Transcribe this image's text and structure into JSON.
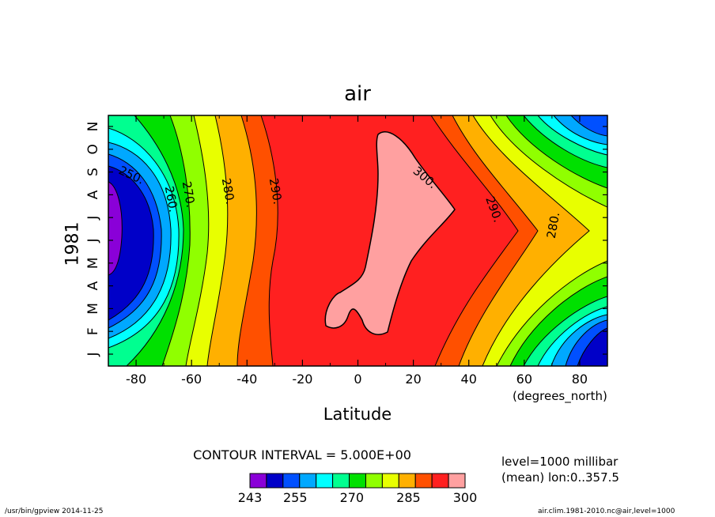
{
  "chart_data": {
    "type": "heatmap",
    "title": "air",
    "xlabel": "Latitude",
    "xunit": "(degrees_north)",
    "ylabel": "1981",
    "x_ticks": [
      "-80",
      "-60",
      "-40",
      "-20",
      "0",
      "20",
      "40",
      "60",
      "80"
    ],
    "x_tick_values": [
      -80,
      -60,
      -40,
      -20,
      0,
      20,
      40,
      60,
      80
    ],
    "xlim": [
      -90,
      90
    ],
    "y_ticks": [
      "J",
      "F",
      "M",
      "A",
      "M",
      "J",
      "J",
      "A",
      "S",
      "O",
      "N"
    ],
    "contour_labels": [
      "250.",
      "260.",
      "270.",
      "280.",
      "290.",
      "300.",
      "290.",
      "280."
    ],
    "colorbar": {
      "levels": [
        243,
        250,
        255,
        260,
        265,
        270,
        275,
        280,
        285,
        290,
        295,
        300
      ],
      "tick_labels": [
        "243",
        "255",
        "270",
        "285",
        "300"
      ],
      "colors": [
        "#8a00d8",
        "#0000c8",
        "#0050ff",
        "#00a8ff",
        "#00ffff",
        "#00ff90",
        "#00e000",
        "#90ff00",
        "#e8ff00",
        "#ffb000",
        "#ff5000",
        "#ff2020",
        "#ffa0a0"
      ]
    }
  },
  "contour_interval": "CONTOUR INTERVAL = 5.000E+00",
  "level_text": "level=1000 millibar",
  "mean_text": "(mean) lon:0..357.5",
  "footer_left": "/usr/bin/gpview   2014-11-25",
  "footer_right": "air.clim.1981-2010.nc@air,level=1000"
}
